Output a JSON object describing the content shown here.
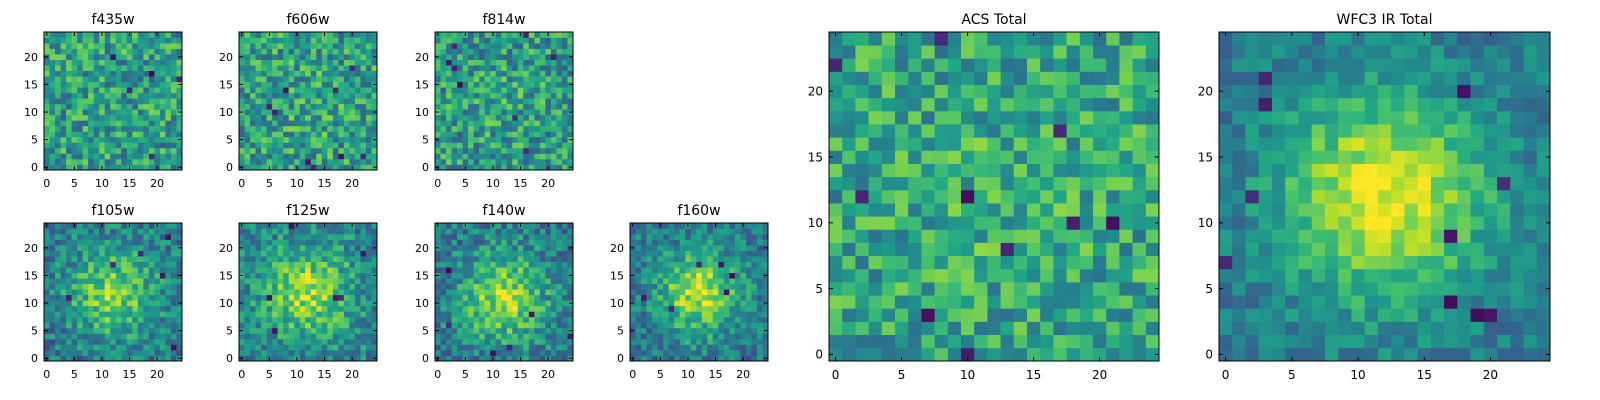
{
  "chart_data": [
    {
      "type": "heatmap",
      "title": "f435w",
      "size": 25,
      "x_ticks": [
        "0",
        "5",
        "10",
        "15",
        "20"
      ],
      "y_ticks": [
        "0",
        "5",
        "10",
        "15",
        "20"
      ],
      "colormap": "viridis",
      "seed": 11,
      "center": [
        12,
        12
      ],
      "sigma": 5,
      "blob_strength": 0.0,
      "noise": 1.0,
      "base": 0.62,
      "contrast": 0.9,
      "dark_spots": 5
    },
    {
      "type": "heatmap",
      "title": "f606w",
      "size": 25,
      "x_ticks": [
        "0",
        "5",
        "10",
        "15",
        "20"
      ],
      "y_ticks": [
        "0",
        "5",
        "10",
        "15",
        "20"
      ],
      "colormap": "viridis",
      "seed": 23,
      "center": [
        12,
        12
      ],
      "sigma": 5,
      "blob_strength": 0.05,
      "noise": 1.0,
      "base": 0.62,
      "contrast": 0.9,
      "dark_spots": 9
    },
    {
      "type": "heatmap",
      "title": "f814w",
      "size": 25,
      "x_ticks": [
        "0",
        "5",
        "10",
        "15",
        "20"
      ],
      "y_ticks": [
        "0",
        "5",
        "10",
        "15",
        "20"
      ],
      "colormap": "viridis",
      "seed": 37,
      "center": [
        12,
        12
      ],
      "sigma": 5,
      "blob_strength": 0.05,
      "noise": 1.0,
      "base": 0.6,
      "contrast": 0.9,
      "dark_spots": 8
    },
    {
      "type": "heatmap",
      "title": "f105w",
      "size": 25,
      "x_ticks": [
        "0",
        "5",
        "10",
        "15",
        "20"
      ],
      "y_ticks": [
        "0",
        "5",
        "10",
        "15",
        "20"
      ],
      "colormap": "viridis",
      "seed": 41,
      "center": [
        12,
        12
      ],
      "sigma": 5.5,
      "blob_strength": 0.45,
      "noise": 0.8,
      "base": 0.45,
      "contrast": 0.9,
      "dark_spots": 6
    },
    {
      "type": "heatmap",
      "title": "f125w",
      "size": 25,
      "x_ticks": [
        "0",
        "5",
        "10",
        "15",
        "20"
      ],
      "y_ticks": [
        "0",
        "5",
        "10",
        "15",
        "20"
      ],
      "colormap": "viridis",
      "seed": 53,
      "center": [
        12,
        12
      ],
      "sigma": 5.5,
      "blob_strength": 0.45,
      "noise": 0.8,
      "base": 0.5,
      "contrast": 0.9,
      "dark_spots": 6
    },
    {
      "type": "heatmap",
      "title": "f140w",
      "size": 25,
      "x_ticks": [
        "0",
        "5",
        "10",
        "15",
        "20"
      ],
      "y_ticks": [
        "0",
        "5",
        "10",
        "15",
        "20"
      ],
      "colormap": "viridis",
      "seed": 67,
      "center": [
        12,
        11
      ],
      "sigma": 5.5,
      "blob_strength": 0.5,
      "noise": 0.8,
      "base": 0.45,
      "contrast": 0.9,
      "dark_spots": 6
    },
    {
      "type": "heatmap",
      "title": "f160w",
      "size": 25,
      "x_ticks": [
        "0",
        "5",
        "10",
        "15",
        "20"
      ],
      "y_ticks": [
        "0",
        "5",
        "10",
        "15",
        "20"
      ],
      "colormap": "viridis",
      "seed": 79,
      "center": [
        12,
        12
      ],
      "sigma": 5,
      "blob_strength": 0.55,
      "noise": 0.75,
      "base": 0.45,
      "contrast": 0.9,
      "dark_spots": 6
    },
    {
      "type": "heatmap",
      "title": "ACS Total",
      "size": 25,
      "x_ticks": [
        "0",
        "5",
        "10",
        "15",
        "20"
      ],
      "y_ticks": [
        "0",
        "5",
        "10",
        "15",
        "20"
      ],
      "colormap": "viridis",
      "seed": 97,
      "center": [
        12,
        12
      ],
      "sigma": 5,
      "blob_strength": 0.05,
      "noise": 0.9,
      "base": 0.65,
      "contrast": 0.9,
      "dark_spots": 10
    },
    {
      "type": "heatmap",
      "title": "WFC3 IR Total",
      "size": 25,
      "x_ticks": [
        "0",
        "5",
        "10",
        "15",
        "20"
      ],
      "y_ticks": [
        "0",
        "5",
        "10",
        "15",
        "20"
      ],
      "colormap": "viridis",
      "seed": 113,
      "center": [
        12,
        12
      ],
      "sigma": 5.5,
      "blob_strength": 0.6,
      "noise": 0.5,
      "base": 0.42,
      "contrast": 0.95,
      "dark_spots": 10
    }
  ]
}
